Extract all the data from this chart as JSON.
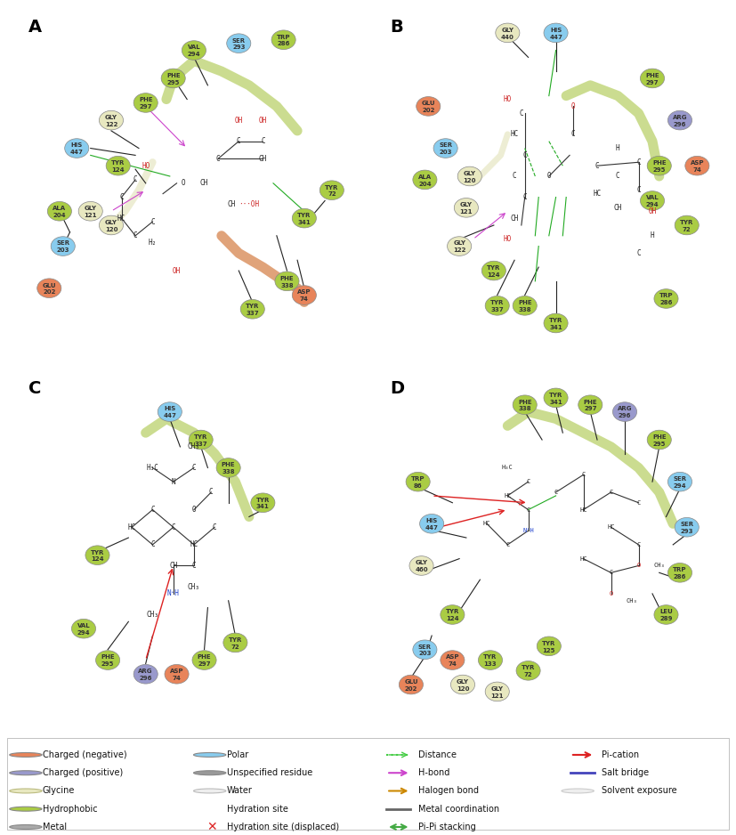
{
  "legend_items": [
    {
      "label": "Charged (negative)",
      "color": "#E8845A",
      "type": "circle",
      "col": 0
    },
    {
      "label": "Charged (positive)",
      "color": "#9999CC",
      "type": "circle",
      "col": 0
    },
    {
      "label": "Glycine",
      "color": "#E8E8C0",
      "type": "circle",
      "col": 0
    },
    {
      "label": "Hydrophobic",
      "color": "#AACC44",
      "type": "circle",
      "col": 0
    },
    {
      "label": "Metal",
      "color": "#AAAAAA",
      "type": "circle",
      "col": 0
    },
    {
      "label": "Polar",
      "color": "#88CCEE",
      "type": "circle",
      "col": 1
    },
    {
      "label": "Unspecified residue",
      "color": "#999999",
      "type": "circle",
      "col": 1
    },
    {
      "label": "Water",
      "color": "#DDDDDD",
      "type": "circle",
      "col": 1
    },
    {
      "label": "Hydration site",
      "color": null,
      "type": "text_only",
      "col": 1
    },
    {
      "label": "Hydration site (displaced)",
      "color": "#FF0000",
      "type": "cross",
      "col": 1
    },
    {
      "label": "Distance",
      "color": "#44CC44",
      "type": "dashed",
      "col": 2
    },
    {
      "label": "H-bond",
      "color": "#CC44CC",
      "type": "arrow",
      "col": 2
    },
    {
      "label": "Halogen bond",
      "color": "#CC8800",
      "type": "arrow",
      "col": 2
    },
    {
      "label": "Metal coordination",
      "color": "#555555",
      "type": "line",
      "col": 2
    },
    {
      "label": "Pi-Pi stacking",
      "color": "#44AA44",
      "type": "doublearrow",
      "col": 2
    },
    {
      "label": "Pi-cation",
      "color": "#DD2222",
      "type": "arrow",
      "col": 3
    },
    {
      "label": "Salt bridge",
      "color": "#4444BB",
      "type": "line",
      "col": 3
    },
    {
      "label": "Solvent exposure",
      "color": "#CCCCCC",
      "type": "circle_open",
      "col": 3
    }
  ],
  "panel_labels": [
    "A",
    "B",
    "C",
    "D"
  ],
  "bg_color": "#FFFFFF",
  "figure_width": 8.27,
  "figure_height": 9.38,
  "title": ""
}
